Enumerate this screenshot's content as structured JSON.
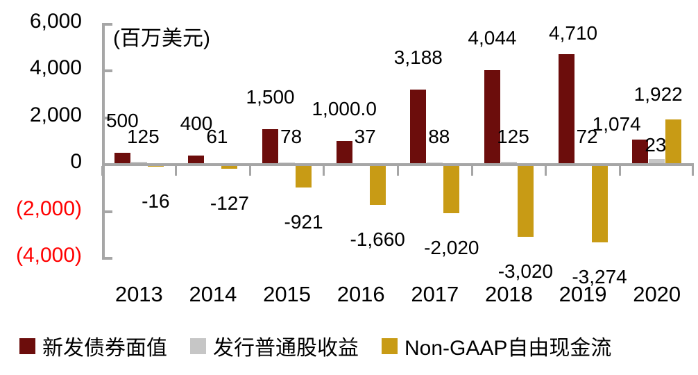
{
  "chart_data": {
    "type": "bar",
    "title": "",
    "unit_label": "(百万美元)",
    "categories": [
      "2013",
      "2014",
      "2015",
      "2016",
      "2017",
      "2018",
      "2019",
      "2020"
    ],
    "series": [
      {
        "name": "新发债券面值",
        "color": "#6C0D0C",
        "values": [
          500,
          400,
          1500,
          1000,
          3188,
          4044,
          4710,
          1074
        ],
        "labels": [
          "500",
          "400",
          "1,500",
          "1,000.0",
          "3,188",
          "4,044",
          "4,710",
          "1,074"
        ]
      },
      {
        "name": "发行普通股收益",
        "color": "#C6C6C6",
        "values": [
          125,
          61,
          78,
          37,
          88,
          125,
          72,
          235
        ],
        "labels": [
          "125",
          "61",
          "78",
          "37",
          "88",
          "125",
          "72",
          "235"
        ]
      },
      {
        "name": "Non-GAAP自由现金流",
        "color": "#C89B15",
        "values": [
          -16,
          -127,
          -921,
          -1660,
          -2020,
          -3020,
          -3274,
          1922
        ],
        "labels": [
          "-16",
          "-127",
          "-921",
          "-1,660",
          "-2,020",
          "-3,020",
          "-3,274",
          "1,922"
        ]
      }
    ],
    "y_axis": {
      "ylim": [
        -4000,
        6000
      ],
      "tick_step": 2000,
      "ticks": [
        {
          "value": 6000,
          "label": "6,000"
        },
        {
          "value": 4000,
          "label": "4,000"
        },
        {
          "value": 2000,
          "label": "2,000"
        },
        {
          "value": 0,
          "label": "0"
        },
        {
          "value": -2000,
          "label": "(2,000)"
        },
        {
          "value": -4000,
          "label": "(4,000)"
        }
      ],
      "negative_label_color": "#FF0000",
      "positive_label_color": "#000000"
    },
    "axis_color": "#A6A6A6",
    "grid": false,
    "legend_position": "bottom",
    "data_labels": true
  }
}
